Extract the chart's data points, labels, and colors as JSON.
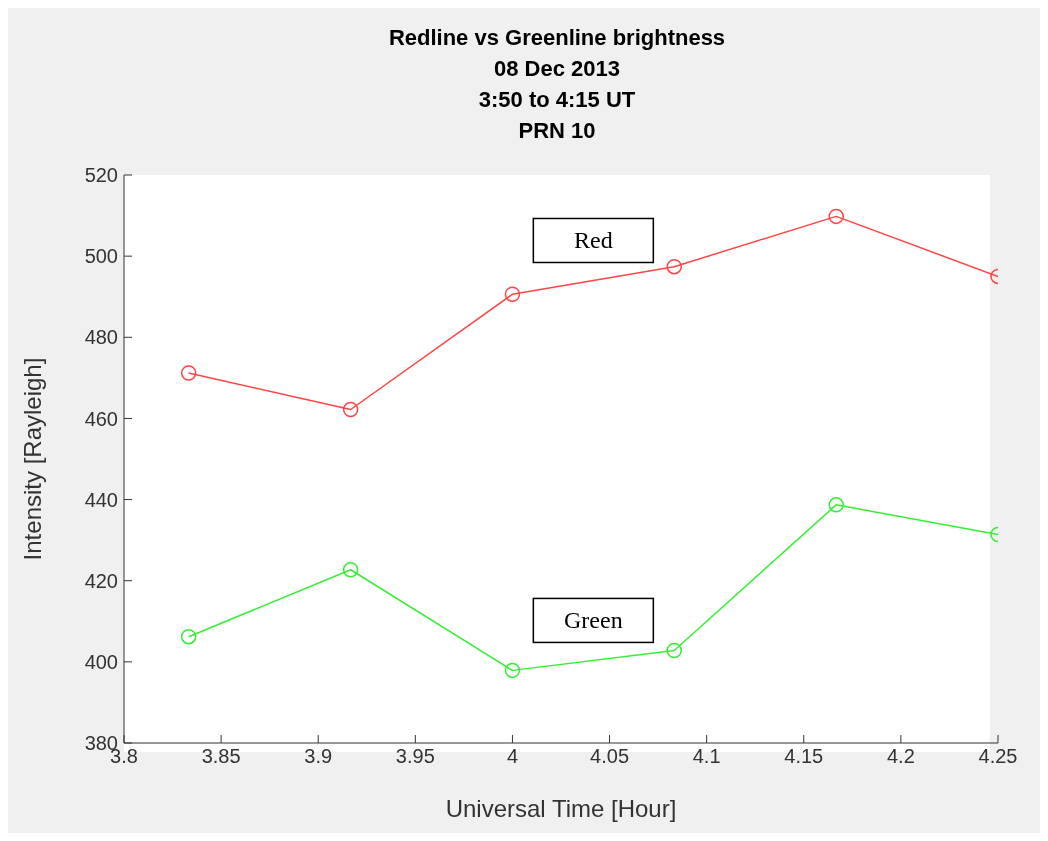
{
  "chart_data": {
    "type": "line",
    "title": "Redline vs Greenline brightness\n08 Dec 2013\n3:50 to 4:15 UT\nPRN 10",
    "xlabel": "Universal Time [Hour]",
    "ylabel": "Intensity [Rayleigh]",
    "x": [
      3.8333,
      3.9167,
      4.0,
      4.0833,
      4.1667,
      4.25
    ],
    "series": [
      {
        "name": "Red",
        "color": "#ff4444",
        "values": [
          471.2,
          462.2,
          490.6,
          497.4,
          509.8,
          495.0
        ]
      },
      {
        "name": "Green",
        "color": "#33ee33",
        "values": [
          406.2,
          422.7,
          397.9,
          402.8,
          438.7,
          431.4
        ]
      }
    ],
    "xlim": [
      3.8,
      4.25
    ],
    "xticks": [
      3.8,
      3.85,
      3.9,
      3.95,
      4,
      4.05,
      4.1,
      4.15,
      4.2,
      4.25
    ],
    "ylim": [
      380,
      520
    ],
    "yticks": [
      380,
      400,
      420,
      440,
      460,
      480,
      500,
      520
    ],
    "grid": false,
    "legend": false,
    "marker": "circle",
    "line_style": "solid"
  }
}
